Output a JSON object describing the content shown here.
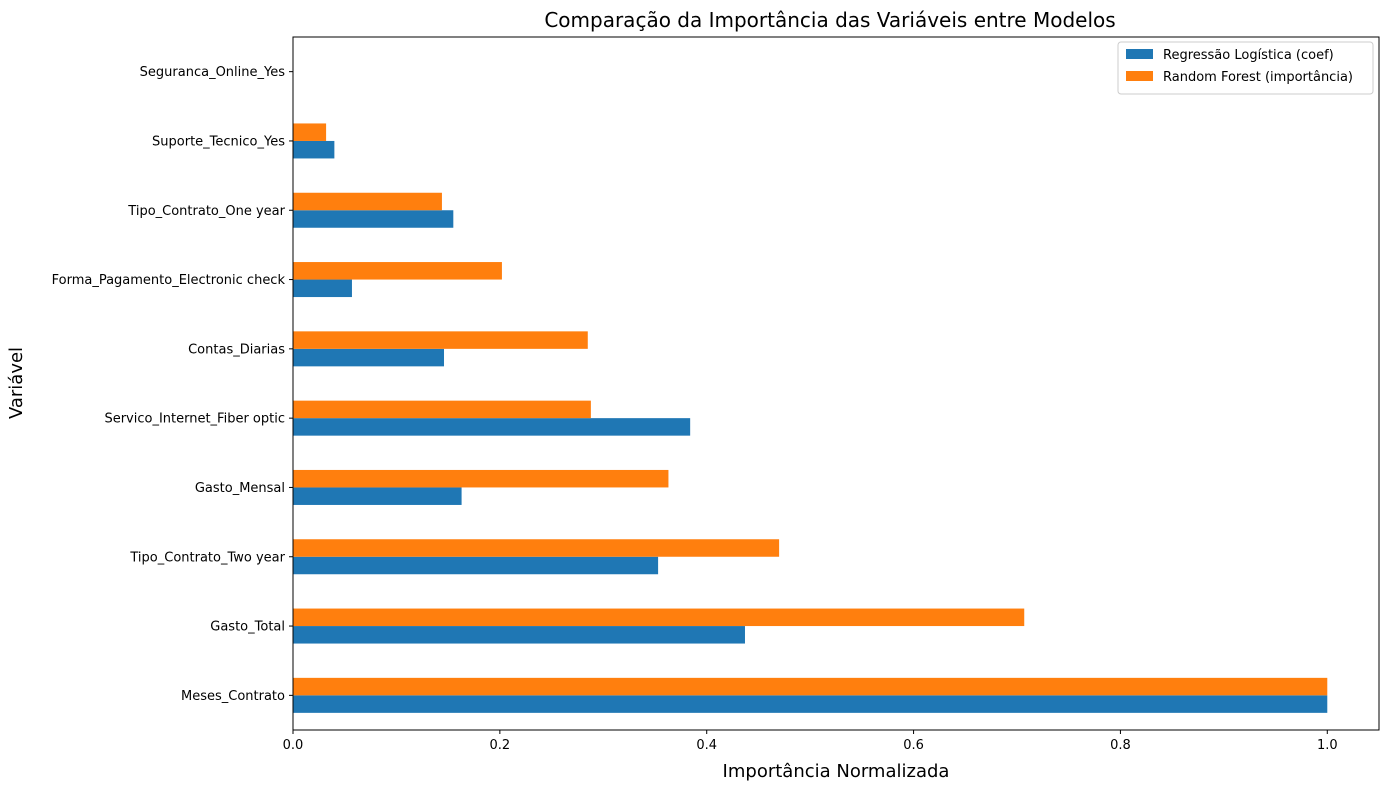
{
  "chart_data": {
    "type": "bar",
    "orientation": "horizontal",
    "title": "Comparação da Importância das Variáveis entre Modelos",
    "xlabel": "Importância Normalizada",
    "ylabel": "Variável",
    "xlim": [
      0,
      1.05
    ],
    "xticks": [
      0,
      0.2,
      0.4,
      0.6,
      0.8,
      1.0
    ],
    "xtick_labels": [
      "0.0",
      "0.2",
      "0.4",
      "0.6",
      "0.8",
      "1.0"
    ],
    "categories": [
      "Meses_Contrato",
      "Gasto_Total",
      "Tipo_Contrato_Two year",
      "Gasto_Mensal",
      "Servico_Internet_Fiber optic",
      "Contas_Diarias",
      "Forma_Pagamento_Electronic check",
      "Tipo_Contrato_One year",
      "Suporte_Tecnico_Yes",
      "Seguranca_Online_Yes"
    ],
    "series": [
      {
        "name": "Regressão Logística (coef)",
        "color": "#1f77b4",
        "values": [
          1.0,
          0.437,
          0.353,
          0.163,
          0.384,
          0.146,
          0.057,
          0.155,
          0.04,
          0.0
        ]
      },
      {
        "name": "Random Forest (importância)",
        "color": "#ff7f0e",
        "values": [
          1.0,
          0.707,
          0.47,
          0.363,
          0.288,
          0.285,
          0.202,
          0.144,
          0.032,
          0.0
        ]
      }
    ],
    "grid": false,
    "legend_position": "top-right"
  }
}
